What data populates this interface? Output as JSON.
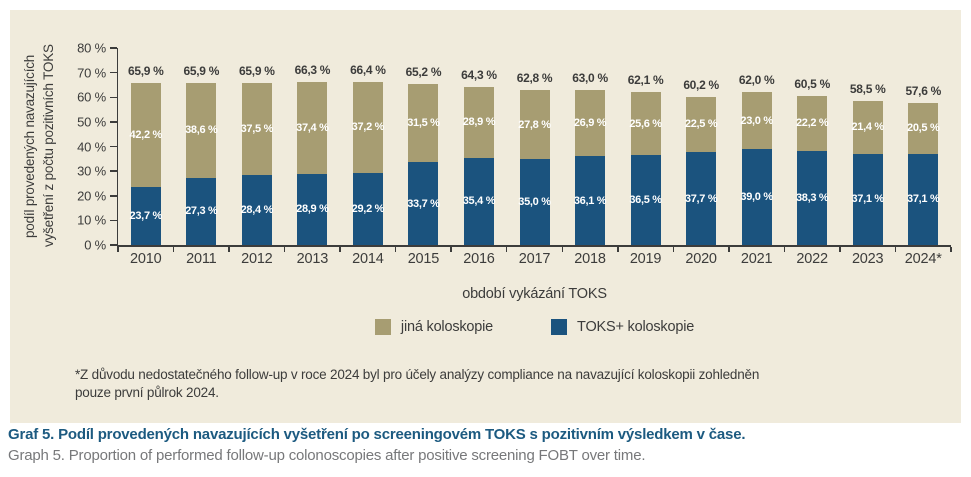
{
  "chart_data": {
    "type": "bar",
    "stacked": true,
    "title": "",
    "xlabel": "období vykázání TOKS",
    "ylabel": "podíl provedených navazujících vyšetření z počtu pozitivních TOKS",
    "ylabel_lines": [
      "podíl provedených navazujících",
      "vyšetření z počtu pozitivních TOKS"
    ],
    "ylim": [
      0,
      80
    ],
    "ytick_step": 10,
    "ytick_labels": [
      "0 %",
      "10 %",
      "20 %",
      "30 %",
      "40 %",
      "50 %",
      "60 %",
      "70 %",
      "80 %"
    ],
    "grid": false,
    "legend_position": "bottom",
    "categories": [
      "2010",
      "2011",
      "2012",
      "2013",
      "2014",
      "2015",
      "2016",
      "2017",
      "2018",
      "2019",
      "2020",
      "2021",
      "2022",
      "2023",
      "2024*"
    ],
    "series": [
      {
        "name": "TOKS+ koloskopie",
        "color": "#1b537e",
        "values": [
          23.7,
          27.3,
          28.4,
          28.9,
          29.2,
          33.7,
          35.4,
          35.0,
          36.1,
          36.5,
          37.7,
          39.0,
          38.3,
          37.1,
          37.1
        ],
        "labels": [
          "23,7 %",
          "27,3 %",
          "28,4 %",
          "28,9 %",
          "29,2 %",
          "33,7 %",
          "35,4 %",
          "35,0 %",
          "36,1 %",
          "36,5 %",
          "37,7 %",
          "39,0 %",
          "38,3 %",
          "37,1 %",
          "37,1 %"
        ]
      },
      {
        "name": "jiná koloskopie",
        "color": "#a79d72",
        "values": [
          42.2,
          38.6,
          37.5,
          37.4,
          37.2,
          31.5,
          28.9,
          27.8,
          26.9,
          25.6,
          22.5,
          23.0,
          22.2,
          21.4,
          20.5
        ],
        "labels": [
          "42,2 %",
          "38,6 %",
          "37,5 %",
          "37,4 %",
          "37,2 %",
          "31,5 %",
          "28,9 %",
          "27,8 %",
          "26,9 %",
          "25,6 %",
          "22,5 %",
          "23,0 %",
          "22,2 %",
          "21,4 %",
          "20,5 %"
        ]
      }
    ],
    "totals": [
      65.9,
      65.9,
      65.9,
      66.3,
      66.4,
      65.2,
      64.3,
      62.8,
      63.0,
      62.1,
      60.2,
      62.0,
      60.5,
      58.5,
      57.6
    ],
    "total_labels": [
      "65,9 %",
      "65,9 %",
      "65,9 %",
      "66,3 %",
      "66,4 %",
      "65,2 %",
      "64,3 %",
      "62,8 %",
      "63,0 %",
      "62,1 %",
      "60,2 %",
      "62,0 %",
      "60,5 %",
      "58,5 %",
      "57,6 %"
    ],
    "legend": [
      {
        "label": "jiná koloskopie",
        "color": "#a79d72"
      },
      {
        "label": "TOKS+ koloskopie",
        "color": "#1b537e"
      }
    ]
  },
  "colors": {
    "panel_background": "#f0ebdc",
    "axis": "#3c3c3b",
    "caption_czech": "#1c5a80",
    "caption_english": "#77787a"
  },
  "footnote": {
    "line1": "*Z důvodu nedostatečného follow-up v roce 2024 byl pro účely analýzy compliance na navazující koloskopii zohledněn",
    "line2": "pouze první půlrok 2024."
  },
  "caption": {
    "cz": "Graf 5. Podíl provedených navazujících vyšetření po screeningovém TOKS s pozitivním výsledkem v čase.",
    "en": "Graph 5. Proportion of performed follow-up colonoscopies after positive screening FOBT over time."
  }
}
